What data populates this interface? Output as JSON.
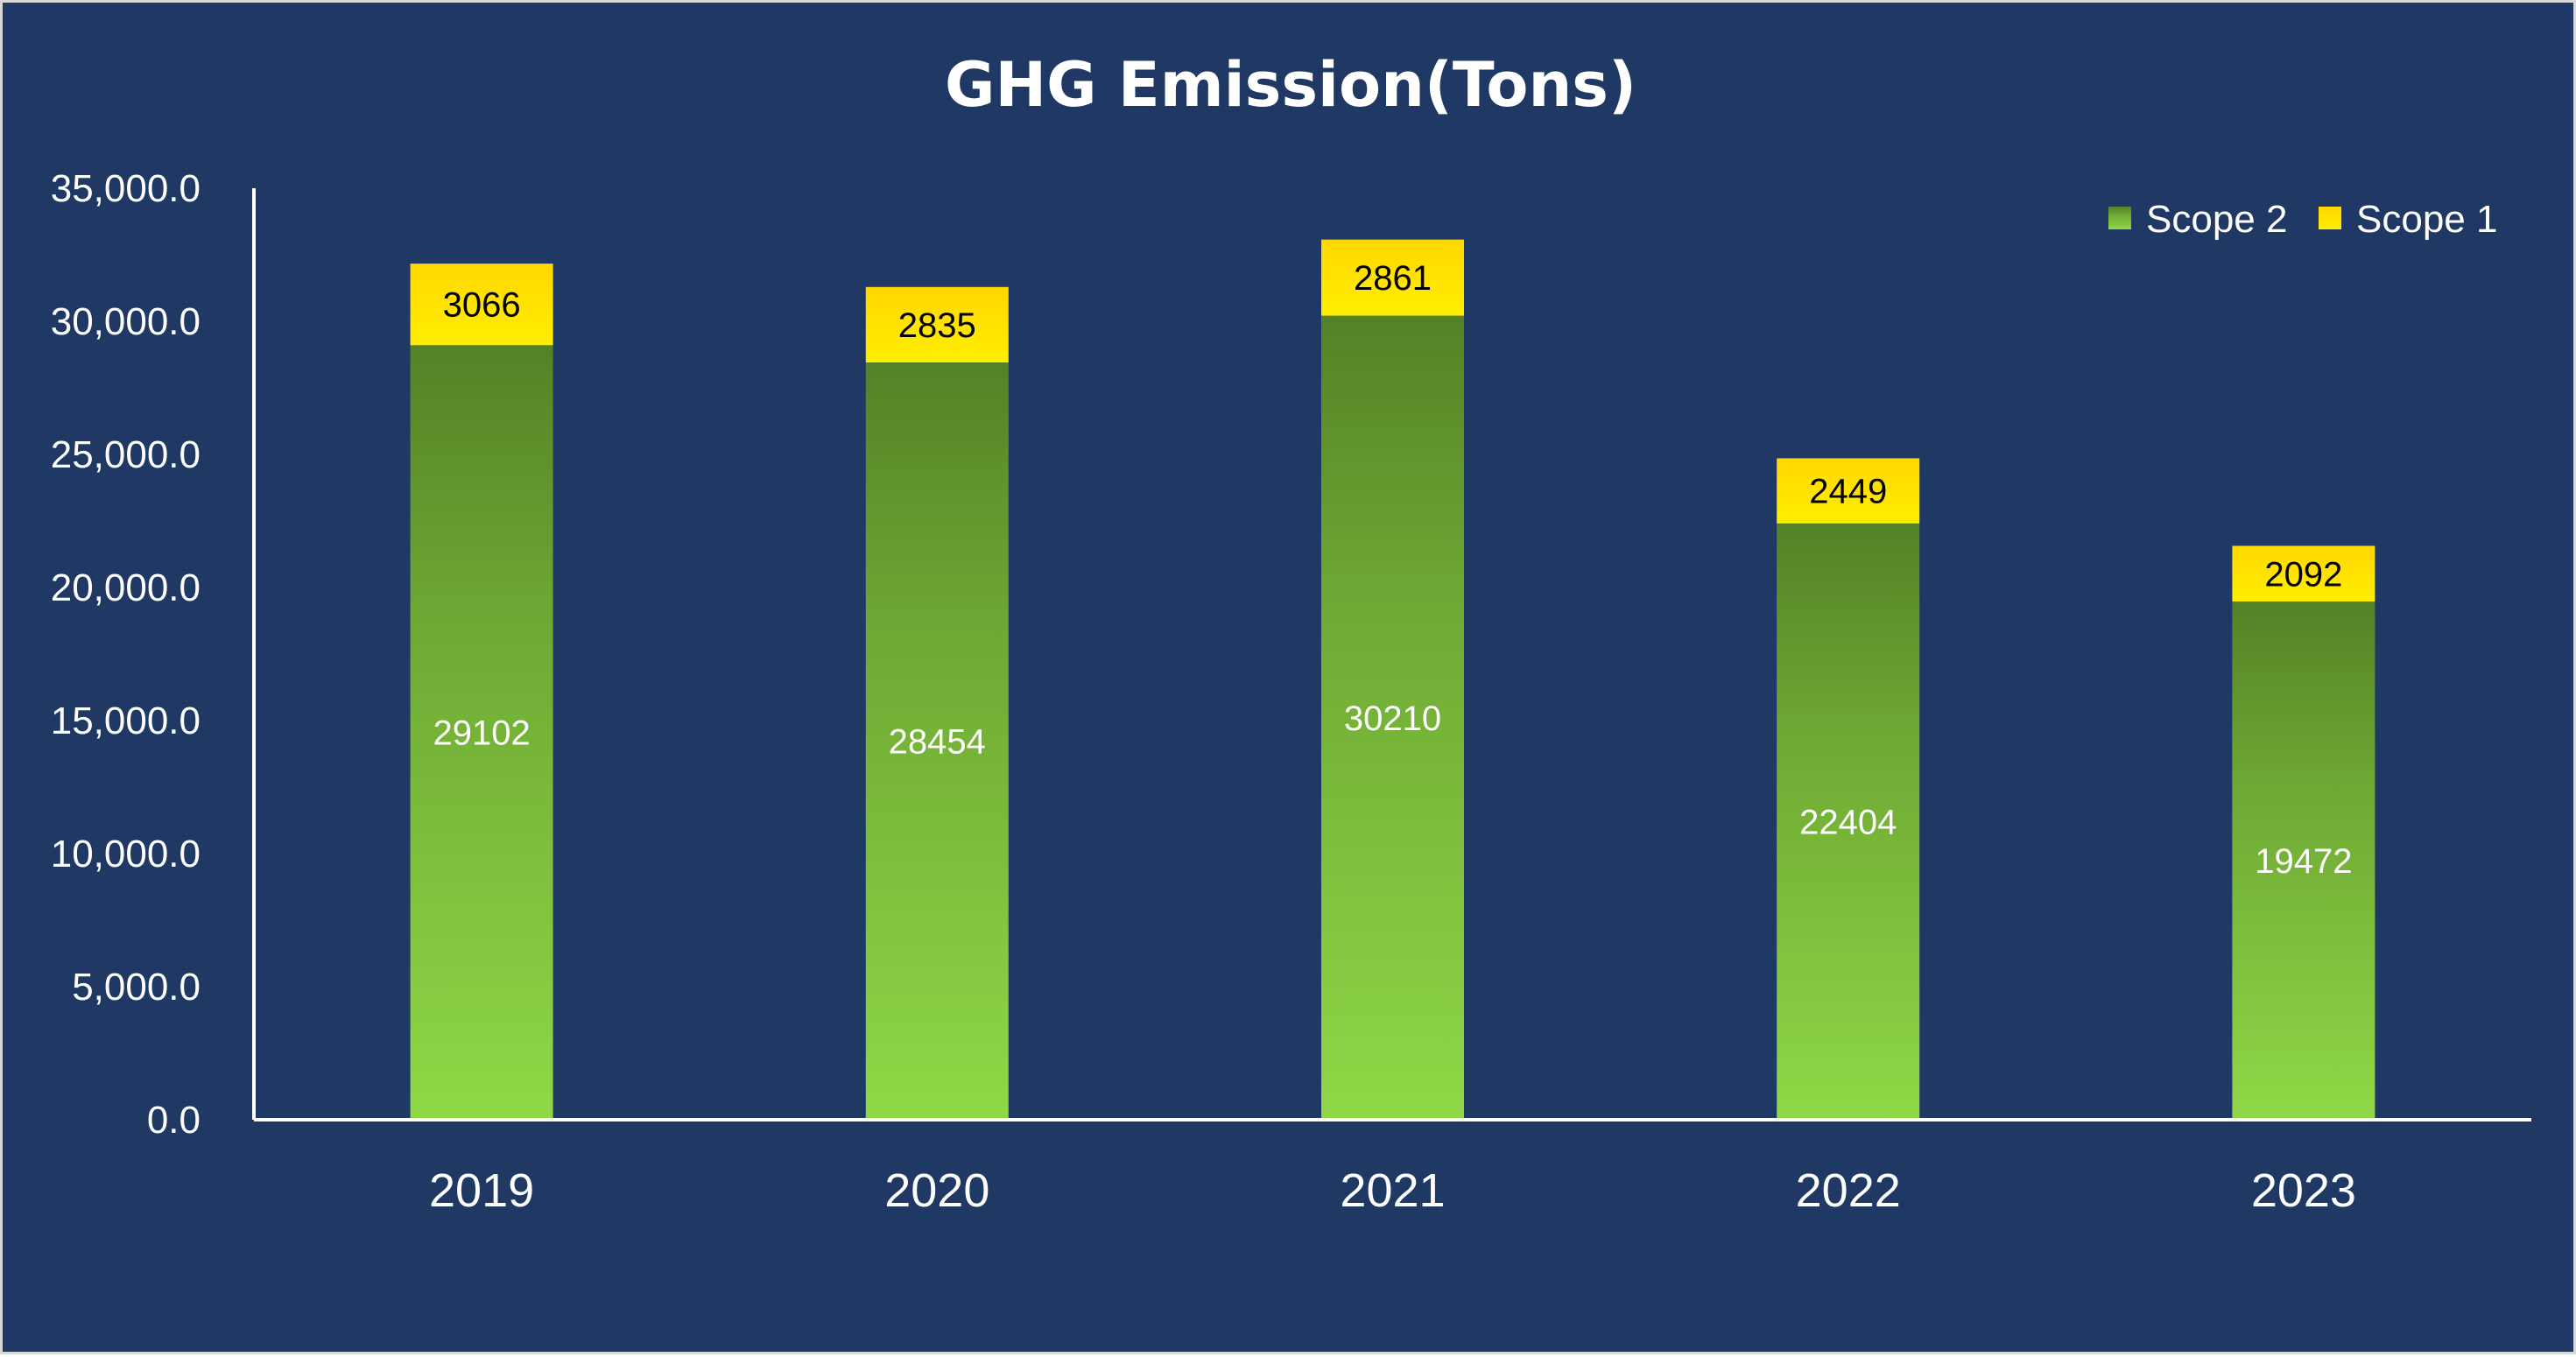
{
  "chart_data": {
    "type": "bar",
    "stacked": true,
    "title": "GHG Emission(Tons)",
    "xlabel": "",
    "ylabel": "",
    "categories": [
      "2019",
      "2020",
      "2021",
      "2022",
      "2023"
    ],
    "series": [
      {
        "name": "Scope 2",
        "values": [
          29102,
          28454,
          30210,
          22404,
          19472
        ],
        "color": "#70ad47"
      },
      {
        "name": "Scope 1",
        "values": [
          3066,
          2835,
          2861,
          2449,
          2092
        ],
        "color": "#ffd700"
      }
    ],
    "ylim": [
      0,
      35000
    ],
    "yticks": [
      0,
      5000,
      10000,
      15000,
      20000,
      25000,
      30000,
      35000
    ],
    "ytick_labels": [
      "0.0",
      "5,000.0",
      "10,000.0",
      "15,000.0",
      "20,000.0",
      "25,000.0",
      "30,000.0",
      "35,000.0"
    ],
    "legend_position": "top-right",
    "legend_order": [
      "Scope 2",
      "Scope 1"
    ],
    "grid": false,
    "background": "#1f3864"
  }
}
